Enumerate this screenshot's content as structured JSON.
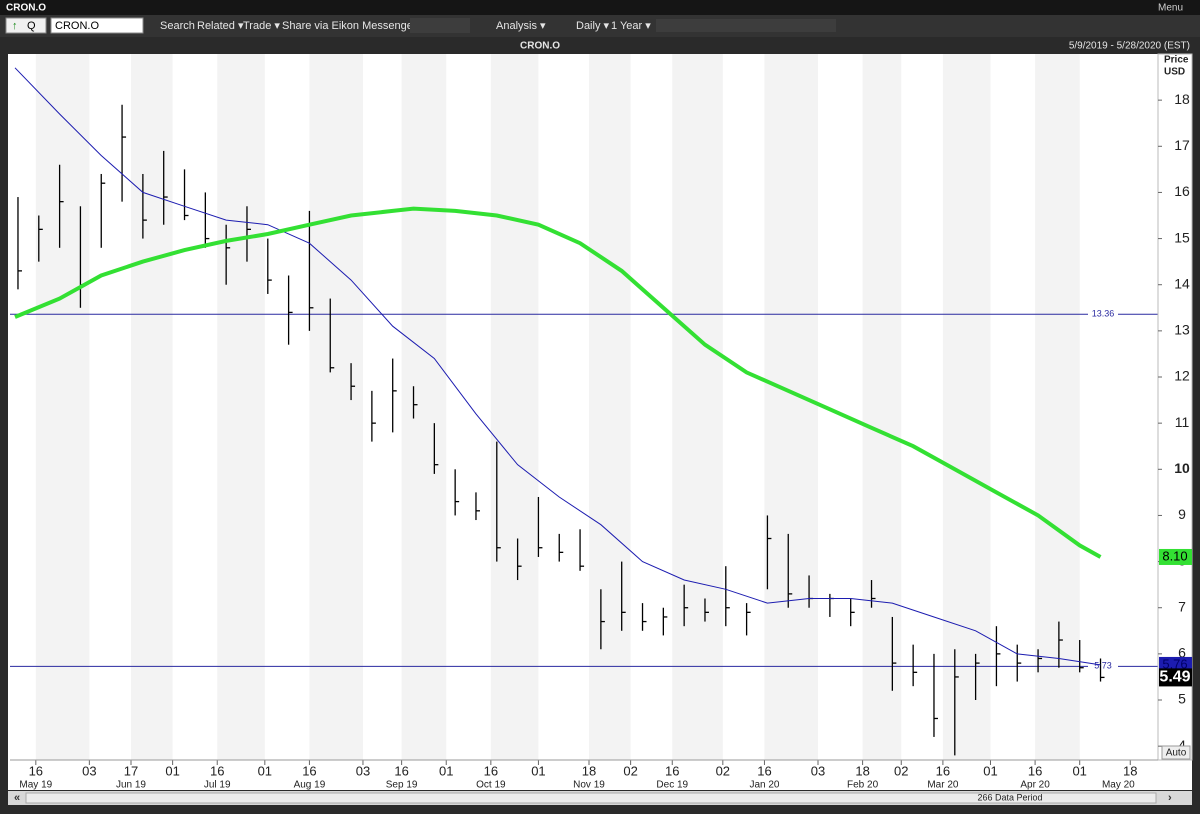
{
  "window": {
    "title": "CRON.O",
    "menu": "Menu"
  },
  "toolbar": {
    "quote": "Q",
    "symbol": "CRON.O",
    "items": [
      "Search",
      "Related ▾",
      "Trade ▾",
      "Share via Eikon Messenger...",
      "Analysis ▾",
      "Daily ▾",
      "1 Year ▾"
    ]
  },
  "footer": {
    "auto": "Auto",
    "data_period": "266 Data Period"
  },
  "chart_data": {
    "type": "ohlc",
    "title": "CRON.O",
    "date_range": "5/9/2019 - 5/28/2020 (EST)",
    "y_label": "Price",
    "y_unit": "USD",
    "xlim": [
      "2019-05-09",
      "2020-05-28"
    ],
    "ylim": [
      3.7,
      19
    ],
    "yticks": [
      4,
      5,
      6,
      7,
      8,
      9,
      10,
      11,
      12,
      13,
      14,
      15,
      16,
      17,
      18
    ],
    "xticks": [
      {
        "value": "2019-05-16",
        "label": "16"
      },
      {
        "value": "2019-06-03",
        "label": "03"
      },
      {
        "value": "2019-06-17",
        "label": "17"
      },
      {
        "value": "2019-07-01",
        "label": "01"
      },
      {
        "value": "2019-07-16",
        "label": "16"
      },
      {
        "value": "2019-08-01",
        "label": "01"
      },
      {
        "value": "2019-08-16",
        "label": "16"
      },
      {
        "value": "2019-09-03",
        "label": "03"
      },
      {
        "value": "2019-09-16",
        "label": "16"
      },
      {
        "value": "2019-10-01",
        "label": "01"
      },
      {
        "value": "2019-10-16",
        "label": "16"
      },
      {
        "value": "2019-11-01",
        "label": "01"
      },
      {
        "value": "2019-11-18",
        "label": "18"
      },
      {
        "value": "2019-12-02",
        "label": "02"
      },
      {
        "value": "2019-12-16",
        "label": "16"
      },
      {
        "value": "2020-01-02",
        "label": "02"
      },
      {
        "value": "2020-01-16",
        "label": "16"
      },
      {
        "value": "2020-02-03",
        "label": "03"
      },
      {
        "value": "2020-02-18",
        "label": "18"
      },
      {
        "value": "2020-03-02",
        "label": "02"
      },
      {
        "value": "2020-03-16",
        "label": "16"
      },
      {
        "value": "2020-04-01",
        "label": "01"
      },
      {
        "value": "2020-04-16",
        "label": "16"
      },
      {
        "value": "2020-05-01",
        "label": "01"
      },
      {
        "value": "2020-05-18",
        "label": "18"
      }
    ],
    "x_month_labels": [
      {
        "value": "2019-05-16",
        "label": "May 19"
      },
      {
        "value": "2019-06-17",
        "label": "Jun 19"
      },
      {
        "value": "2019-07-16",
        "label": "Jul 19"
      },
      {
        "value": "2019-08-16",
        "label": "Aug 19"
      },
      {
        "value": "2019-09-16",
        "label": "Sep 19"
      },
      {
        "value": "2019-10-16",
        "label": "Oct 19"
      },
      {
        "value": "2019-11-18",
        "label": "Nov 19"
      },
      {
        "value": "2019-12-16",
        "label": "Dec 19"
      },
      {
        "value": "2020-01-16",
        "label": "Jan 20"
      },
      {
        "value": "2020-02-18",
        "label": "Feb 20"
      },
      {
        "value": "2020-03-16",
        "label": "Mar 20"
      },
      {
        "value": "2020-04-16",
        "label": "Apr 20"
      },
      {
        "value": "2020-05-14",
        "label": "May 20"
      }
    ],
    "color": "#000000",
    "x": [
      "2019-05-10",
      "2019-05-17",
      "2019-05-24",
      "2019-05-31",
      "2019-06-07",
      "2019-06-14",
      "2019-06-21",
      "2019-06-28",
      "2019-07-05",
      "2019-07-12",
      "2019-07-19",
      "2019-07-26",
      "2019-08-02",
      "2019-08-09",
      "2019-08-16",
      "2019-08-23",
      "2019-08-30",
      "2019-09-06",
      "2019-09-13",
      "2019-09-20",
      "2019-09-27",
      "2019-10-04",
      "2019-10-11",
      "2019-10-18",
      "2019-10-25",
      "2019-11-01",
      "2019-11-08",
      "2019-11-15",
      "2019-11-22",
      "2019-11-29",
      "2019-12-06",
      "2019-12-13",
      "2019-12-20",
      "2019-12-27",
      "2020-01-03",
      "2020-01-10",
      "2020-01-17",
      "2020-01-24",
      "2020-01-31",
      "2020-02-07",
      "2020-02-14",
      "2020-02-21",
      "2020-02-28",
      "2020-03-06",
      "2020-03-13",
      "2020-03-20",
      "2020-03-27",
      "2020-04-03",
      "2020-04-10",
      "2020-04-17",
      "2020-04-24",
      "2020-05-01",
      "2020-05-08"
    ],
    "high": [
      15.9,
      15.5,
      16.6,
      15.7,
      16.4,
      17.9,
      16.4,
      16.9,
      16.5,
      16.0,
      15.3,
      15.7,
      15.0,
      14.2,
      15.6,
      13.7,
      12.3,
      11.7,
      12.4,
      11.8,
      11.0,
      10.0,
      9.5,
      10.6,
      8.5,
      9.4,
      8.6,
      8.7,
      7.4,
      8.0,
      7.1,
      7.0,
      7.5,
      7.2,
      7.9,
      7.1,
      9.0,
      8.6,
      7.7,
      7.3,
      7.2,
      7.6,
      6.8,
      6.2,
      6.0,
      6.1,
      6.0,
      6.6,
      6.2,
      6.1,
      6.7,
      6.3,
      5.9
    ],
    "low": [
      13.9,
      14.5,
      14.8,
      13.5,
      14.8,
      15.8,
      15.0,
      15.3,
      15.4,
      14.8,
      14.0,
      14.5,
      13.8,
      12.7,
      13.0,
      12.1,
      11.5,
      10.6,
      10.8,
      11.1,
      9.9,
      9.0,
      8.9,
      8.0,
      7.6,
      8.1,
      8.0,
      7.8,
      6.1,
      6.5,
      6.5,
      6.4,
      6.6,
      6.7,
      6.6,
      6.4,
      7.4,
      7.0,
      7.0,
      6.8,
      6.6,
      7.0,
      5.2,
      5.3,
      4.2,
      3.8,
      5.0,
      5.3,
      5.4,
      5.6,
      5.7,
      5.6,
      5.4
    ],
    "close": [
      14.3,
      15.2,
      15.8,
      14.0,
      16.2,
      17.2,
      15.4,
      15.9,
      15.5,
      15.0,
      14.8,
      15.2,
      14.1,
      13.4,
      13.5,
      12.2,
      11.8,
      11.0,
      11.7,
      11.4,
      10.1,
      9.3,
      9.1,
      8.3,
      7.9,
      8.3,
      8.2,
      7.9,
      6.7,
      6.9,
      6.7,
      6.8,
      7.0,
      6.9,
      7.0,
      6.9,
      8.5,
      7.3,
      7.2,
      7.2,
      6.9,
      7.2,
      5.8,
      5.6,
      4.6,
      5.5,
      5.8,
      6.0,
      5.8,
      5.9,
      6.3,
      5.7,
      5.49
    ],
    "overlays": [
      {
        "color": "#1c1cb0",
        "x": [
          "2019-05-09",
          "2019-05-24",
          "2019-06-07",
          "2019-06-21",
          "2019-07-05",
          "2019-07-19",
          "2019-08-02",
          "2019-08-16",
          "2019-08-30",
          "2019-09-13",
          "2019-09-27",
          "2019-10-11",
          "2019-10-25",
          "2019-11-08",
          "2019-11-22",
          "2019-12-06",
          "2019-12-20",
          "2020-01-03",
          "2020-01-17",
          "2020-01-31",
          "2020-02-14",
          "2020-02-28",
          "2020-03-13",
          "2020-03-27",
          "2020-04-10",
          "2020-04-24",
          "2020-05-08"
        ],
        "values": [
          18.7,
          17.7,
          16.8,
          16.0,
          15.7,
          15.4,
          15.3,
          14.9,
          14.1,
          13.1,
          12.4,
          11.2,
          10.1,
          9.4,
          8.8,
          8.0,
          7.6,
          7.4,
          7.1,
          7.2,
          7.2,
          7.1,
          6.8,
          6.5,
          6.0,
          5.9,
          5.76
        ]
      },
      {
        "color": "#33e033",
        "x": [
          "2019-05-09",
          "2019-05-24",
          "2019-06-07",
          "2019-06-21",
          "2019-07-05",
          "2019-07-19",
          "2019-08-02",
          "2019-08-16",
          "2019-08-30",
          "2019-09-13",
          "2019-09-20",
          "2019-10-04",
          "2019-10-18",
          "2019-11-01",
          "2019-11-15",
          "2019-11-29",
          "2019-12-13",
          "2019-12-27",
          "2020-01-10",
          "2020-01-24",
          "2020-02-07",
          "2020-02-21",
          "2020-03-06",
          "2020-03-20",
          "2020-04-03",
          "2020-04-17",
          "2020-05-01",
          "2020-05-08"
        ],
        "values": [
          13.3,
          13.7,
          14.2,
          14.5,
          14.75,
          14.95,
          15.1,
          15.3,
          15.5,
          15.6,
          15.65,
          15.6,
          15.5,
          15.3,
          14.9,
          14.3,
          13.5,
          12.7,
          12.1,
          11.7,
          11.3,
          10.9,
          10.5,
          10.0,
          9.5,
          9.0,
          8.35,
          8.1
        ],
        "value_labels": [
          null,
          null,
          null,
          null,
          null,
          null,
          null,
          null,
          null,
          null,
          null,
          null,
          null,
          null,
          null,
          null,
          null,
          null,
          null,
          null,
          null,
          null,
          null,
          null,
          null,
          null,
          null,
          "8.10"
        ]
      }
    ],
    "hlines": [
      {
        "value": 13.36,
        "color": "#2a2aa0"
      },
      {
        "value": 5.73,
        "color": "#2a2aa0"
      }
    ]
  }
}
